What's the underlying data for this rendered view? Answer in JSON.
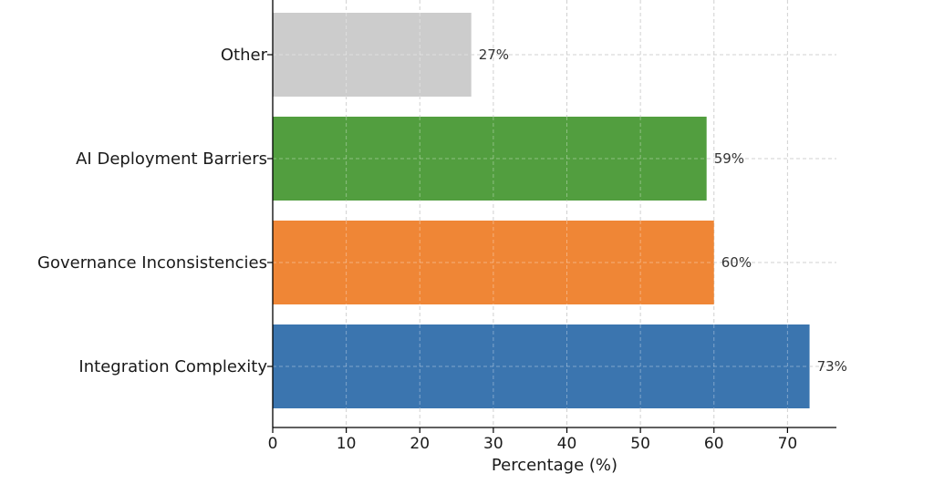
{
  "chart_data": {
    "type": "bar",
    "orientation": "horizontal",
    "categories": [
      "Integration Complexity",
      "Governance Inconsistencies",
      "AI Deployment Barriers",
      "Other"
    ],
    "values": [
      73,
      60,
      59,
      27
    ],
    "value_labels": [
      "73%",
      "60%",
      "59%",
      "27%"
    ],
    "colors": [
      "#3b75af",
      "#ef8636",
      "#529e3f",
      "#cccccc"
    ],
    "xlabel": "Percentage (%)",
    "ylabel": "",
    "title": "",
    "xlim": [
      0,
      76.65
    ],
    "xticks": [
      0,
      10,
      20,
      30,
      40,
      50,
      60,
      70
    ],
    "grid": true,
    "legend": "none"
  }
}
